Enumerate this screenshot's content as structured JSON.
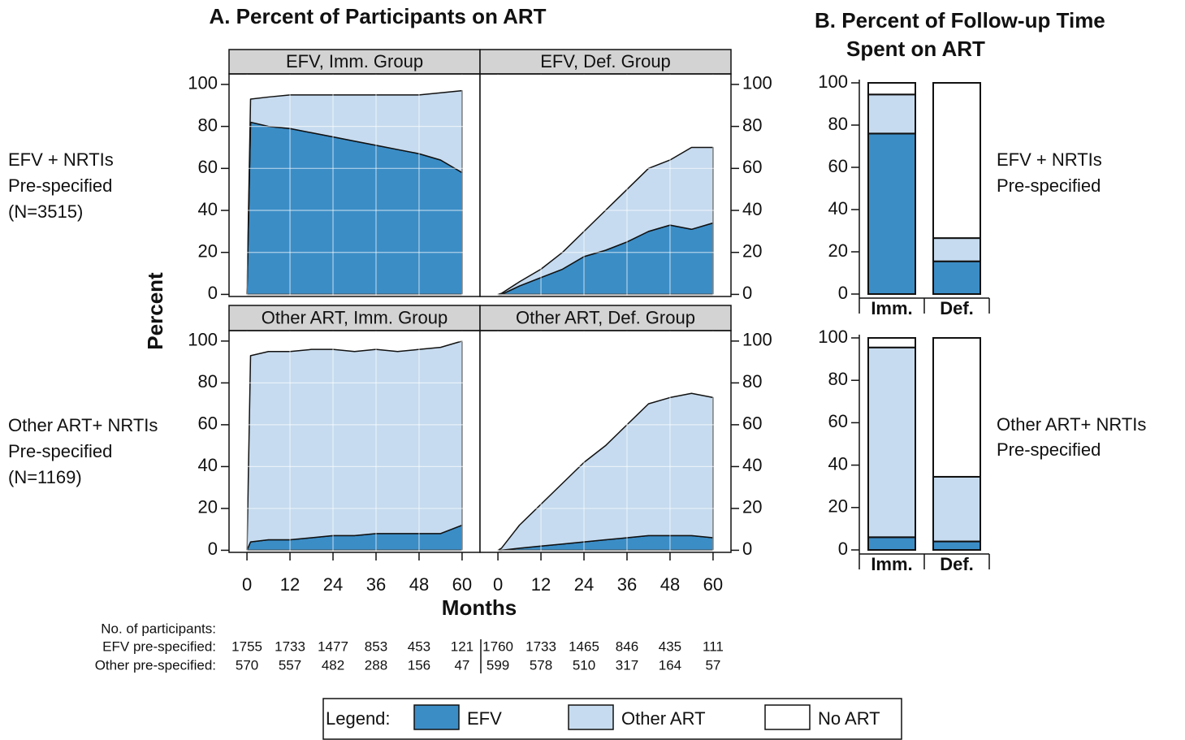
{
  "figure": {
    "title_a": "A. Percent of Participants on ART",
    "title_b": [
      "B. Percent of Follow-up Time",
      "Spent on ART"
    ],
    "y_label": "Percent",
    "x_label": "Months",
    "row_labels": [
      [
        "EFV + NRTIs",
        "Pre-specified",
        "(N=3515)"
      ],
      [
        "Other ART+ NRTIs",
        "Pre-specified",
        "(N=1169)"
      ]
    ],
    "bar_row_labels": [
      [
        "EFV + NRTIs",
        "Pre-specified"
      ],
      [
        "Other ART+ NRTIs",
        "Pre-specified"
      ]
    ],
    "legend_title": "Legend:",
    "risk_table": {
      "title": "No. of participants:",
      "rows": [
        {
          "label": "EFV pre-specified:",
          "imm": [
            1755,
            1733,
            1477,
            853,
            453,
            121
          ],
          "def": [
            1760,
            1733,
            1465,
            846,
            435,
            111
          ]
        },
        {
          "label": "Other pre-specified:",
          "imm": [
            570,
            557,
            482,
            288,
            156,
            47
          ],
          "def": [
            599,
            578,
            510,
            317,
            164,
            57
          ]
        }
      ]
    }
  },
  "chart_data": [
    {
      "type": "area",
      "title": "EFV, Imm. Group",
      "x": [
        0,
        1,
        6,
        12,
        18,
        24,
        30,
        36,
        42,
        48,
        54,
        60
      ],
      "series": [
        {
          "name": "EFV",
          "color": "#3b8dc6",
          "values": [
            0,
            82,
            80,
            79,
            77,
            75,
            73,
            71,
            69,
            67,
            64,
            58
          ]
        },
        {
          "name": "Other ART",
          "color": "#c6dbef",
          "values": [
            0,
            11,
            14,
            16,
            18,
            20,
            22,
            24,
            26,
            28,
            32,
            39
          ]
        }
      ],
      "xlim": [
        -5,
        65
      ],
      "xticks": [
        0,
        12,
        24,
        36,
        48,
        60
      ],
      "ylim": [
        -1,
        105
      ],
      "yticks": [
        0,
        20,
        40,
        60,
        80,
        100
      ],
      "grid": true
    },
    {
      "type": "area",
      "title": "EFV, Def. Group",
      "x": [
        0,
        1,
        6,
        12,
        18,
        24,
        30,
        36,
        42,
        48,
        54,
        60
      ],
      "series": [
        {
          "name": "EFV",
          "color": "#3b8dc6",
          "values": [
            0,
            0,
            4,
            8,
            12,
            18,
            21,
            25,
            30,
            33,
            31,
            34
          ]
        },
        {
          "name": "Other ART",
          "color": "#c6dbef",
          "values": [
            0,
            0.5,
            2,
            4,
            8,
            12,
            19,
            25,
            30,
            31,
            39,
            36
          ]
        }
      ],
      "xlim": [
        -5,
        65
      ],
      "xticks": [
        0,
        12,
        24,
        36,
        48,
        60
      ],
      "ylim": [
        -1,
        105
      ],
      "yticks": [
        0,
        20,
        40,
        60,
        80,
        100
      ],
      "grid": true
    },
    {
      "type": "area",
      "title": "Other ART, Imm. Group",
      "x": [
        0,
        1,
        6,
        12,
        18,
        24,
        30,
        36,
        42,
        48,
        54,
        60
      ],
      "series": [
        {
          "name": "EFV",
          "color": "#3b8dc6",
          "values": [
            0,
            4,
            5,
            5,
            6,
            7,
            7,
            8,
            8,
            8,
            8,
            12
          ]
        },
        {
          "name": "Other ART",
          "color": "#c6dbef",
          "values": [
            0,
            89,
            90,
            90,
            90,
            89,
            88,
            88,
            87,
            88,
            89,
            88
          ]
        }
      ],
      "xlim": [
        -5,
        65
      ],
      "xticks": [
        0,
        12,
        24,
        36,
        48,
        60
      ],
      "ylim": [
        -1,
        105
      ],
      "yticks": [
        0,
        20,
        40,
        60,
        80,
        100
      ],
      "grid": true
    },
    {
      "type": "area",
      "title": "Other ART, Def. Group",
      "x": [
        0,
        1,
        6,
        12,
        18,
        24,
        30,
        36,
        42,
        48,
        54,
        60
      ],
      "series": [
        {
          "name": "EFV",
          "color": "#3b8dc6",
          "values": [
            0,
            0,
            1,
            2,
            3,
            4,
            5,
            6,
            7,
            7,
            7,
            6
          ]
        },
        {
          "name": "Other ART",
          "color": "#c6dbef",
          "values": [
            0,
            1,
            11,
            20,
            29,
            38,
            45,
            54,
            63,
            66,
            68,
            67
          ]
        }
      ],
      "xlim": [
        -5,
        65
      ],
      "xticks": [
        0,
        12,
        24,
        36,
        48,
        60
      ],
      "ylim": [
        -1,
        105
      ],
      "yticks": [
        0,
        20,
        40,
        60,
        80,
        100
      ],
      "grid": true
    },
    {
      "type": "stacked_bar",
      "categories": [
        "Imm.",
        "Def."
      ],
      "series": [
        {
          "name": "EFV",
          "color": "#3b8dc6",
          "values": [
            76,
            15.5
          ]
        },
        {
          "name": "Other ART",
          "color": "#c6dbef",
          "values": [
            18.5,
            11
          ]
        },
        {
          "name": "No ART",
          "color": "#ffffff",
          "values": [
            5.5,
            73.5
          ]
        }
      ],
      "ylim": [
        0,
        100
      ],
      "yticks": [
        0,
        20,
        40,
        60,
        80,
        100
      ]
    },
    {
      "type": "stacked_bar",
      "categories": [
        "Imm.",
        "Def."
      ],
      "series": [
        {
          "name": "EFV",
          "color": "#3b8dc6",
          "values": [
            6,
            4
          ]
        },
        {
          "name": "Other ART",
          "color": "#c6dbef",
          "values": [
            89.5,
            30.5
          ]
        },
        {
          "name": "No ART",
          "color": "#ffffff",
          "values": [
            4.5,
            65.5
          ]
        }
      ],
      "ylim": [
        0,
        100
      ],
      "yticks": [
        0,
        20,
        40,
        60,
        80,
        100
      ]
    }
  ]
}
